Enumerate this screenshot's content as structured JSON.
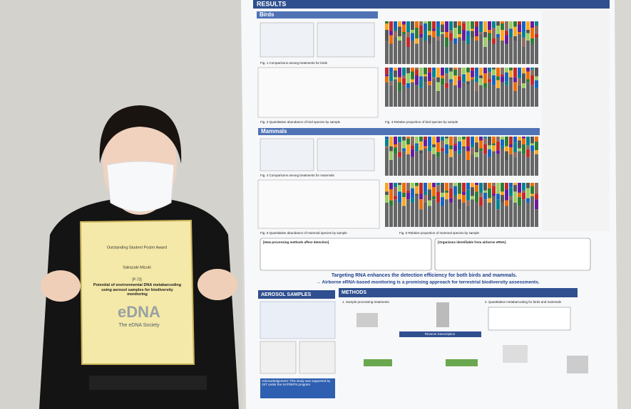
{
  "poster": {
    "results_header": "RESULTS",
    "birds_header": "Birds",
    "fig1": "Fig. 1 Comparisons among treatments for birds",
    "fig2": "Fig. 2 Quantitative abundance of bird species by sample",
    "fig3": "Fig. 3 Relative proportion of bird species by sample",
    "mammals_header": "Mammals",
    "fig4": "Fig. 4 Comparisons among treatments for mammals",
    "fig5": "Fig. 5 Quantitative abundance of mammal species by sample",
    "fig6": "Fig. 6 Relative proportion of mammal species by sample",
    "box1_title": "[How processing methods affect detection]",
    "box2_title": "[Organisms identifiable from airborne eRNA]",
    "conclusion1": "Targeting RNA enhances the detection efficiency for both birds and mammals.",
    "conclusion2": "→ Airborne eRNA-based monitoring is a promising approach for terrestrial biodiversity assessments.",
    "aerosol_header": "AEROSOL SAMPLES",
    "methods_header": "METHODS",
    "methods1": "1. Sample processing treatments",
    "methods2": "2. Quantitative metabarcoding for birds and mammals",
    "reverse": "Reverse transcription",
    "acknowledgement": "Acknowledgement: This study was supported by JST under the SATREPS program"
  },
  "certificate": {
    "award": "Outstanding Student Poster Award",
    "name": "Sakazaki Mizuki",
    "id": "[P-73]",
    "title": "Potential of environmental DNA metabarcoding using aerosol samples for biodiversity monitoring",
    "logo": "eDNA",
    "society": "The eDNA Society"
  }
}
